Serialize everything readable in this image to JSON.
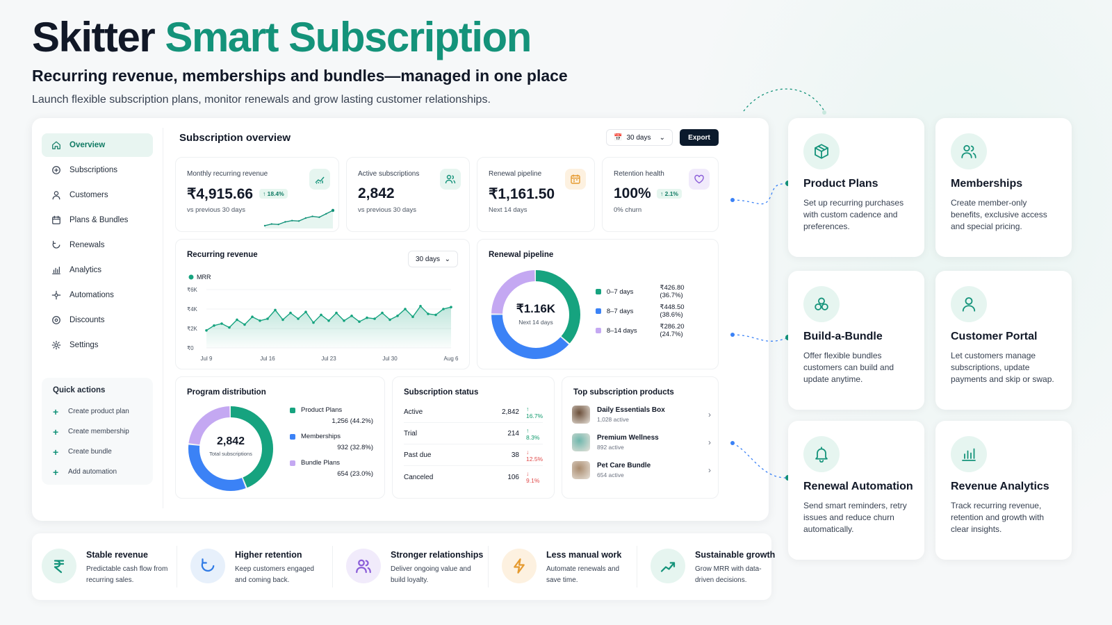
{
  "hero": {
    "brand": "Skitter",
    "accent": "Smart Subscription",
    "subtitle": "Recurring revenue, memberships and bundles—managed in one place",
    "tagline": "Launch flexible subscription plans, monitor renewals and grow lasting customer relationships."
  },
  "sidebar": {
    "items": [
      {
        "label": "Overview",
        "icon": "home-icon"
      },
      {
        "label": "Subscriptions",
        "icon": "subscriptions-icon"
      },
      {
        "label": "Customers",
        "icon": "user-icon"
      },
      {
        "label": "Plans & Bundles",
        "icon": "calendar-icon"
      },
      {
        "label": "Renewals",
        "icon": "refresh-icon"
      },
      {
        "label": "Analytics",
        "icon": "bar-chart-icon"
      },
      {
        "label": "Automations",
        "icon": "automation-icon"
      },
      {
        "label": "Discounts",
        "icon": "discount-icon"
      },
      {
        "label": "Settings",
        "icon": "gear-icon"
      }
    ],
    "quick_actions_title": "Quick actions",
    "quick_actions": [
      "Create product plan",
      "Create membership",
      "Create bundle",
      "Add automation"
    ]
  },
  "header": {
    "title": "Subscription overview",
    "range": "30 days",
    "export": "Export"
  },
  "kpis": {
    "mrr": {
      "label": "Monthly recurring revenue",
      "value": "₹4,915.66",
      "change": "↑ 18.4%",
      "sub": "vs previous 30 days"
    },
    "active": {
      "label": "Active subscriptions",
      "value": "2,842",
      "sub": "vs previous 30 days"
    },
    "pipeline": {
      "label": "Renewal pipeline",
      "value": "₹1,161.50",
      "sub": "Next 14 days"
    },
    "retention": {
      "label": "Retention health",
      "value": "100%",
      "change": "↑ 2.1%",
      "sub": "0% churn"
    }
  },
  "recurring": {
    "title": "Recurring revenue",
    "range": "30 days"
  },
  "pipeline_card": {
    "title": "Renewal pipeline",
    "center_value": "₹1.16K",
    "center_sub": "Next 14 days"
  },
  "distribution": {
    "title": "Program distribution",
    "center_value": "2,842",
    "center_sub": "Total subscriptions"
  },
  "status": {
    "title": "Subscription status",
    "rows": [
      {
        "label": "Active",
        "value": "2,842",
        "change": "↑ 16.7%",
        "up": true
      },
      {
        "label": "Trial",
        "value": "214",
        "change": "↑ 8.3%",
        "up": true
      },
      {
        "label": "Past due",
        "value": "38",
        "change": "↓ 12.5%",
        "up": false
      },
      {
        "label": "Canceled",
        "value": "106",
        "change": "↓ 9.1%",
        "up": false
      }
    ]
  },
  "products": {
    "title": "Top subscription products",
    "rows": [
      {
        "name": "Daily Essentials Box",
        "sub": "1,028 active",
        "color": "#6b4f3a"
      },
      {
        "name": "Premium Wellness",
        "sub": "892 active",
        "color": "#6fb7ad"
      },
      {
        "name": "Pet Care Bundle",
        "sub": "654 active",
        "color": "#a98b6e"
      }
    ]
  },
  "features": [
    {
      "title": "Product Plans",
      "desc": "Set up recurring purchases with custom cadence and preferences.",
      "icon": "box-icon"
    },
    {
      "title": "Memberships",
      "desc": "Create member-only benefits, exclusive access and special pricing.",
      "icon": "users-icon"
    },
    {
      "title": "Build-a-Bundle",
      "desc": "Offer flexible bundles customers can build and update anytime.",
      "icon": "bundle-icon"
    },
    {
      "title": "Customer Portal",
      "desc": "Let customers manage subscriptions, update payments and skip or swap.",
      "icon": "user-icon"
    },
    {
      "title": "Renewal Automation",
      "desc": "Send smart reminders, retry issues and reduce churn automatically.",
      "icon": "bell-icon"
    },
    {
      "title": "Revenue Analytics",
      "desc": "Track recurring revenue, retention and growth with clear insights.",
      "icon": "bar-chart-icon"
    }
  ],
  "benefits": [
    {
      "title": "Stable revenue",
      "desc": "Predictable cash flow from recurring sales.",
      "icon": "rupee-icon",
      "bg": "#e6f5f0",
      "fg": "#14937a"
    },
    {
      "title": "Higher retention",
      "desc": "Keep customers engaged and coming back.",
      "icon": "refresh-icon",
      "bg": "#e7f0fb",
      "fg": "#2f7ae5"
    },
    {
      "title": "Stronger relationships",
      "desc": "Deliver ongoing value and build loyalty.",
      "icon": "users-icon",
      "bg": "#f1ebfb",
      "fg": "#8a5cd8"
    },
    {
      "title": "Less manual work",
      "desc": "Automate renewals and save time.",
      "icon": "bolt-icon",
      "bg": "#fdf1e0",
      "fg": "#e59a2f"
    },
    {
      "title": "Sustainable growth",
      "desc": "Grow MRR with data-driven decisions.",
      "icon": "trend-icon",
      "bg": "#e6f5f0",
      "fg": "#14937a"
    }
  ],
  "chart_data": [
    {
      "type": "area",
      "title": "Recurring revenue",
      "series": [
        {
          "name": "MRR",
          "values": [
            1.8,
            2.3,
            2.5,
            2.1,
            2.9,
            2.4,
            3.2,
            2.8,
            3.0,
            3.9,
            2.9,
            3.6,
            3.0,
            3.7,
            2.6,
            3.4,
            2.8,
            3.6,
            2.8,
            3.3,
            2.7,
            3.1,
            3.0,
            3.6,
            2.9,
            3.3,
            4.0,
            3.2,
            4.3,
            3.5,
            3.4,
            4.0,
            4.2
          ]
        }
      ],
      "x_ticks": [
        "Jul 9",
        "Jul 16",
        "Jul 23",
        "Jul 30",
        "Aug 6"
      ],
      "y_ticks": [
        "₹0",
        "₹2K",
        "₹4K",
        "₹6K"
      ],
      "ylim": [
        0,
        6
      ]
    },
    {
      "type": "pie",
      "title": "Renewal pipeline",
      "categories": [
        "0–7 days",
        "8–7 days",
        "8–14 days"
      ],
      "values": [
        426.8,
        448.5,
        286.2
      ],
      "labels": [
        "₹426.80 (36.7%)",
        "₹448.50 (38.6%)",
        "₹286.20 (24.7%)"
      ],
      "colors": [
        "#16a37f",
        "#3b82f6",
        "#c4a8f2"
      ]
    },
    {
      "type": "pie",
      "title": "Program distribution",
      "categories": [
        "Product Plans",
        "Memberships",
        "Bundle Plans"
      ],
      "values": [
        1256,
        932,
        654
      ],
      "labels": [
        "1,256 (44.2%)",
        "932 (32.8%)",
        "654 (23.0%)"
      ],
      "colors": [
        "#16a37f",
        "#3b82f6",
        "#c4a8f2"
      ]
    },
    {
      "type": "line",
      "title": "Monthly recurring revenue",
      "values": [
        1,
        1.4,
        1.3,
        1.9,
        2.2,
        2.1,
        2.8,
        3.2,
        3.0,
        3.8,
        4.6
      ]
    }
  ]
}
